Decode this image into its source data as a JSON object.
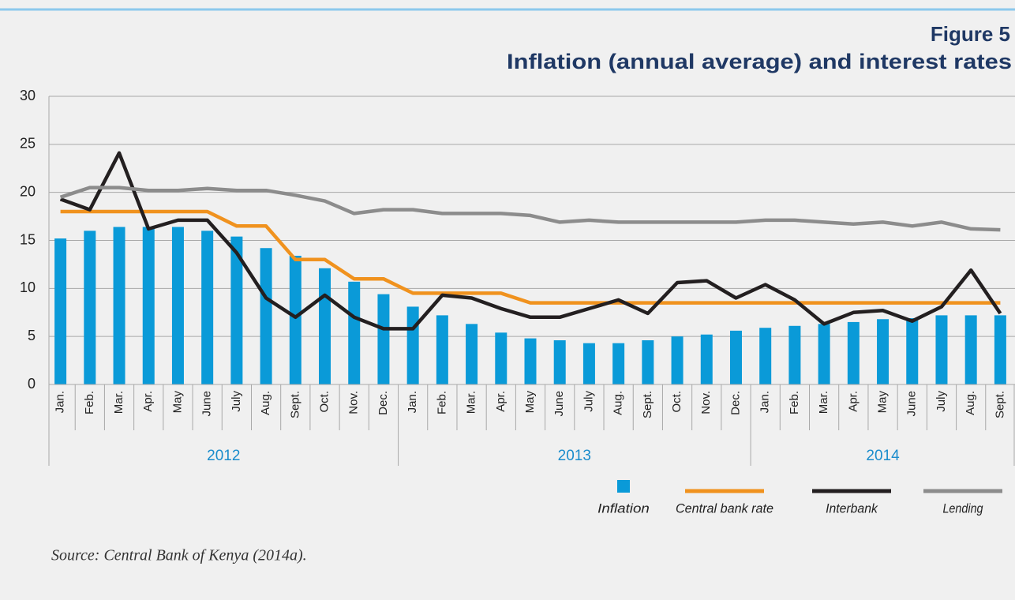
{
  "chart_data": {
    "type": "combo",
    "figure_label": "Figure 5",
    "title": "Inflation (annual average) and interest rates",
    "groups": [
      {
        "name": "2012",
        "categories": [
          "Jan.",
          "Feb.",
          "Mar.",
          "Apr.",
          "May",
          "June",
          "July",
          "Aug.",
          "Sept.",
          "Oct.",
          "Nov.",
          "Dec."
        ]
      },
      {
        "name": "2013",
        "categories": [
          "Jan.",
          "Feb.",
          "Mar.",
          "Apr.",
          "May",
          "June",
          "July",
          "Aug.",
          "Sept.",
          "Oct.",
          "Nov.",
          "Dec."
        ]
      },
      {
        "name": "2014",
        "categories": [
          "Jan.",
          "Feb.",
          "Mar.",
          "Apr.",
          "May",
          "June",
          "July",
          "Aug.",
          "Sept."
        ]
      }
    ],
    "series": [
      {
        "name": "Inflation",
        "type": "bar",
        "color": "#0a9ad8",
        "values": [
          15.2,
          16.0,
          16.4,
          16.4,
          16.4,
          16.0,
          15.4,
          14.2,
          13.4,
          12.1,
          10.7,
          9.4,
          8.1,
          7.2,
          6.3,
          5.4,
          4.8,
          4.6,
          4.3,
          4.3,
          4.6,
          5.0,
          5.2,
          5.6,
          5.9,
          6.1,
          6.3,
          6.5,
          6.8,
          6.9,
          7.2,
          7.2,
          7.2
        ]
      },
      {
        "name": "Central bank rate",
        "type": "line",
        "color": "#f0921e",
        "values": [
          18,
          18,
          18,
          18,
          18,
          18,
          16.5,
          16.5,
          13,
          13,
          11,
          11,
          9.5,
          9.5,
          9.5,
          9.5,
          8.5,
          8.5,
          8.5,
          8.5,
          8.5,
          8.5,
          8.5,
          8.5,
          8.5,
          8.5,
          8.5,
          8.5,
          8.5,
          8.5,
          8.5,
          8.5,
          8.5
        ]
      },
      {
        "name": "Interbank",
        "type": "line",
        "color": "#231f20",
        "values": [
          19.3,
          18.2,
          24.1,
          16.2,
          17.1,
          17.1,
          13.7,
          9.0,
          7.0,
          9.3,
          7.0,
          5.8,
          5.8,
          9.3,
          9.0,
          7.9,
          7.0,
          7.0,
          7.9,
          8.8,
          7.4,
          10.6,
          10.8,
          9.0,
          10.4,
          8.8,
          6.3,
          7.5,
          7.7,
          6.6,
          8.1,
          11.9,
          7.4
        ]
      },
      {
        "name": "Lending",
        "type": "line",
        "color": "#8c8c8c",
        "values": [
          19.5,
          20.5,
          20.5,
          20.2,
          20.2,
          20.4,
          20.2,
          20.2,
          19.7,
          19.1,
          17.8,
          18.2,
          18.2,
          17.8,
          17.8,
          17.8,
          17.6,
          16.9,
          17.1,
          16.9,
          16.9,
          16.9,
          16.9,
          16.9,
          17.1,
          17.1,
          16.9,
          16.7,
          16.9,
          16.5,
          16.9,
          16.2,
          16.1
        ]
      }
    ],
    "ylim": [
      0,
      30
    ],
    "yticks": [
      0,
      5,
      10,
      15,
      20,
      25,
      30
    ],
    "grid": true,
    "legend": "bottom-right",
    "source": "Source: Central Bank of Kenya (2014a)."
  }
}
